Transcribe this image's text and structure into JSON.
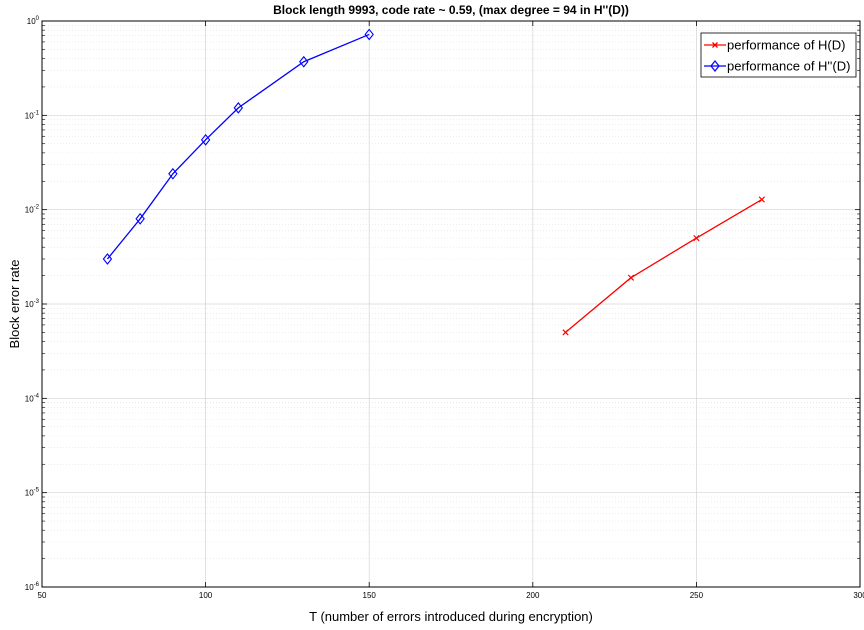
{
  "chart_data": {
    "type": "line",
    "title": "Block length 9993, code rate ~ 0.59, (max degree = 94 in H''(D))",
    "xlabel": "T (number of errors introduced during encryption)",
    "ylabel": "Block error rate",
    "xlim": [
      50,
      300
    ],
    "ylim": [
      1e-06,
      1
    ],
    "y_scale": "log",
    "grid": true,
    "minor_grid": true,
    "legend_position": "top-right",
    "x_ticks": [
      50,
      100,
      150,
      200,
      250,
      300
    ],
    "x_tick_labels": [
      "50",
      "100",
      "150",
      "200",
      "250",
      "300"
    ],
    "y_ticks": [
      {
        "base": "10",
        "exp": "-6"
      },
      {
        "base": "10",
        "exp": "-5"
      },
      {
        "base": "10",
        "exp": "-4"
      },
      {
        "base": "10",
        "exp": "-3"
      },
      {
        "base": "10",
        "exp": "-2"
      },
      {
        "base": "10",
        "exp": "-1"
      },
      {
        "base": "10",
        "exp": "0"
      }
    ],
    "series": [
      {
        "name": "performance of H(D)",
        "color": "#ff0000",
        "marker": "x",
        "x": [
          210,
          230,
          250,
          270
        ],
        "y": [
          0.0005,
          0.0019,
          0.005,
          0.0128
        ]
      },
      {
        "name": "performance of H''(D)",
        "color": "#0000ff",
        "marker": "diamond",
        "x": [
          70,
          80,
          90,
          100,
          110,
          130,
          150
        ],
        "y": [
          0.003,
          0.008,
          0.024,
          0.055,
          0.12,
          0.37,
          0.72
        ]
      }
    ]
  }
}
